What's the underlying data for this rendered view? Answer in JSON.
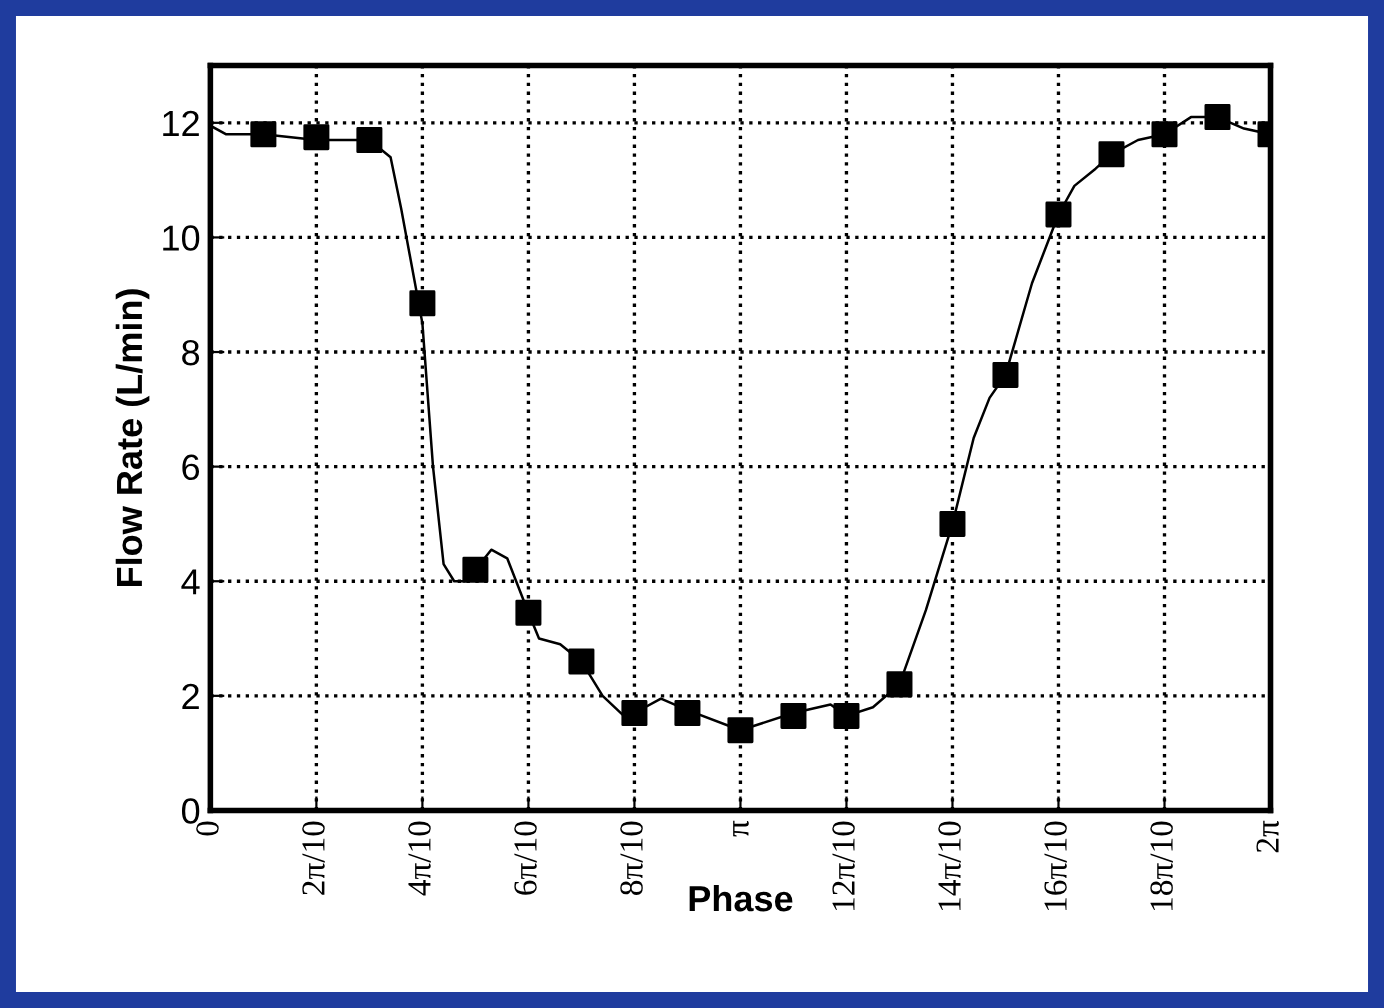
{
  "chart_data": {
    "type": "line",
    "xlabel": "Phase",
    "ylabel": "Flow Rate (L/min)",
    "xlim": [
      0,
      6.2832
    ],
    "ylim": [
      0,
      13
    ],
    "xticks": [
      0,
      {
        "value": 0.6283,
        "label": "2π/10"
      },
      {
        "value": 1.2566,
        "label": "4π/10"
      },
      {
        "value": 1.885,
        "label": "6π/10"
      },
      {
        "value": 2.5133,
        "label": "8π/10"
      },
      {
        "value": 3.1416,
        "label": "π"
      },
      {
        "value": 3.7699,
        "label": "12π/10"
      },
      {
        "value": 4.3982,
        "label": "14π/10"
      },
      {
        "value": 5.0265,
        "label": "16π/10"
      },
      {
        "value": 5.6549,
        "label": "18π/10"
      },
      {
        "value": 6.2832,
        "label": "2π"
      }
    ],
    "yticks": [
      0,
      2,
      4,
      6,
      8,
      10,
      12
    ],
    "grid": true,
    "series": [
      {
        "color": "#000000",
        "marker": "none",
        "x": [
          0,
          0.0942,
          0.3142,
          0.6283,
          0.9425,
          1.0681,
          1.131,
          1.1938,
          1.2566,
          1.3195,
          1.3823,
          1.4451,
          1.508,
          1.5708,
          1.665,
          1.7593,
          1.885,
          1.9478,
          2.0735,
          2.1991,
          2.3248,
          2.4504,
          2.5133,
          2.6704,
          2.8274,
          3.1416,
          3.4558,
          3.6757,
          3.7699,
          3.927,
          4.0841,
          4.2412,
          4.3982,
          4.5239,
          4.6181,
          4.7124,
          4.8695,
          5.0265,
          5.1208,
          5.2465,
          5.3407,
          5.4978,
          5.6549,
          5.8119,
          5.969,
          6.1261,
          6.2832
        ],
        "values": [
          11.95,
          11.8,
          11.8,
          11.7,
          11.7,
          11.4,
          10.5,
          9.5,
          8.5,
          6.0,
          4.3,
          4.0,
          4.0,
          4.2,
          4.55,
          4.4,
          3.45,
          3.0,
          2.9,
          2.6,
          2.0,
          1.65,
          1.7,
          1.95,
          1.75,
          1.4,
          1.7,
          1.85,
          1.65,
          1.8,
          2.2,
          3.5,
          5.0,
          6.5,
          7.2,
          7.6,
          9.2,
          10.4,
          10.9,
          11.2,
          11.45,
          11.7,
          11.8,
          12.1,
          12.1,
          11.9,
          11.8
        ]
      },
      {
        "type": "scatter",
        "color": "#000000",
        "marker": "square",
        "x": [
          0.3142,
          0.6283,
          0.9425,
          1.2566,
          1.5708,
          1.885,
          2.1991,
          2.5133,
          2.8274,
          3.1416,
          3.4558,
          3.7699,
          4.0841,
          4.3982,
          4.7124,
          5.0265,
          5.3407,
          5.6549,
          5.969,
          6.2832
        ],
        "values": [
          11.8,
          11.75,
          11.7,
          8.85,
          4.2,
          3.45,
          2.6,
          1.7,
          1.7,
          1.4,
          1.65,
          1.65,
          2.2,
          5.0,
          7.6,
          10.4,
          11.45,
          11.8,
          12.1,
          11.8
        ]
      }
    ]
  }
}
